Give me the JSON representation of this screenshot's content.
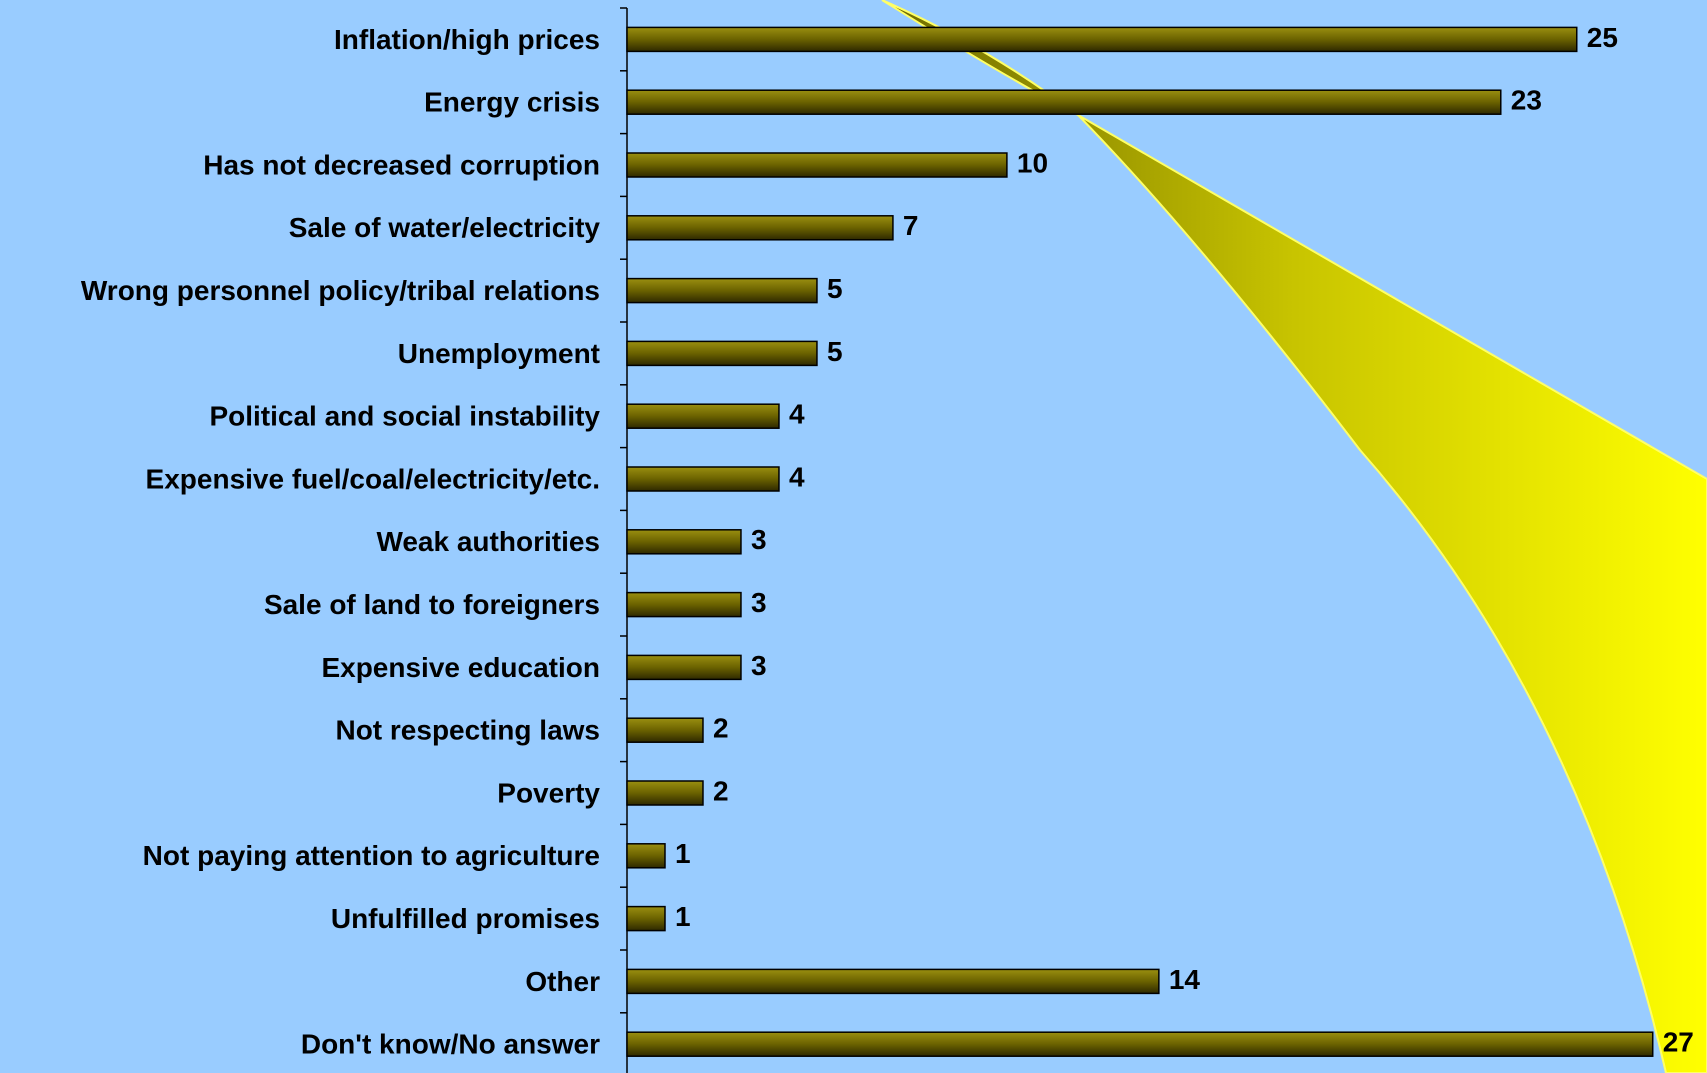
{
  "chart_data": {
    "type": "bar",
    "orientation": "horizontal",
    "categories": [
      "Inflation/high prices",
      "Energy crisis",
      "Has not decreased corruption",
      "Sale of water/electricity",
      "Wrong personnel policy/tribal relations",
      "Unemployment",
      "Political and social instability",
      "Expensive fuel/coal/electricity/etc.",
      "Weak authorities",
      "Sale of land to foreigners",
      "Expensive education",
      "Not respecting laws",
      "Poverty",
      "Not paying attention to agriculture",
      "Unfulfilled promises",
      "Other",
      "Don't know/No answer"
    ],
    "values": [
      25,
      23,
      10,
      7,
      5,
      5,
      4,
      4,
      3,
      3,
      3,
      2,
      2,
      1,
      1,
      14,
      27
    ],
    "color": "#6b6200"
  }
}
